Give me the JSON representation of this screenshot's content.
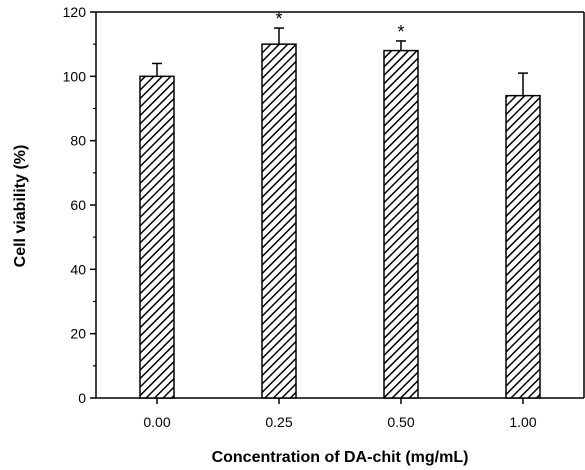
{
  "chart_data": {
    "type": "bar",
    "categories": [
      "0.00",
      "0.25",
      "0.50",
      "1.00"
    ],
    "values": [
      100,
      110,
      108,
      94
    ],
    "errors": [
      4,
      5,
      3,
      7
    ],
    "annotations": [
      "",
      "*",
      "*",
      ""
    ],
    "xlabel": "Concentration of DA-chit (mg/mL)",
    "ylabel": "Cell viability (%)",
    "ylim": [
      0,
      120
    ],
    "yticks": [
      0,
      20,
      40,
      60,
      80,
      100,
      120
    ],
    "bar_pattern": "diagonal-hatch",
    "grid": false
  }
}
